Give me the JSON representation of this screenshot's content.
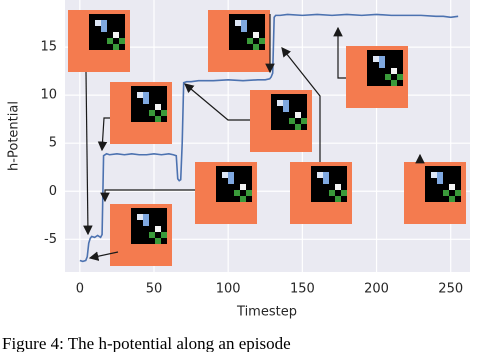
{
  "chart_data": {
    "type": "line",
    "xlabel": "Timestep",
    "ylabel": "h-Potential",
    "caption": "Figure 4: The h-potential along an episode",
    "x": [
      0,
      2,
      4,
      5,
      6,
      7,
      8,
      10,
      12,
      14,
      15,
      16,
      18,
      20,
      25,
      30,
      35,
      40,
      45,
      50,
      55,
      60,
      63,
      65,
      66,
      67,
      68,
      69,
      70,
      72,
      75,
      80,
      90,
      100,
      110,
      120,
      125,
      128,
      129,
      130,
      131,
      132,
      135,
      140,
      150,
      160,
      170,
      180,
      190,
      200,
      210,
      220,
      230,
      240,
      245,
      250,
      255
    ],
    "series": [
      {
        "color": "#4c72b0",
        "values": [
          -7.2,
          -7.3,
          -7.2,
          -6.8,
          -5.4,
          -4.9,
          -4.7,
          -4.8,
          -4.6,
          -4.8,
          -4.5,
          3.7,
          3.9,
          3.8,
          3.9,
          3.8,
          3.9,
          3.8,
          3.8,
          3.9,
          3.8,
          3.9,
          3.8,
          3.7,
          1.3,
          1.1,
          1.2,
          5.0,
          11.3,
          11.4,
          11.4,
          11.5,
          11.5,
          11.6,
          11.5,
          11.6,
          11.6,
          11.7,
          11.9,
          12.3,
          18.1,
          18.3,
          18.3,
          18.4,
          18.3,
          18.4,
          18.3,
          18.4,
          18.3,
          18.4,
          18.3,
          18.3,
          18.3,
          18.2,
          18.2,
          18.1,
          18.2
        ]
      }
    ],
    "xlim": [
      -10,
      263
    ],
    "ylim": [
      -8.4,
      19.9
    ],
    "xticks": [
      0,
      50,
      100,
      150,
      200,
      250
    ],
    "yticks": [
      -5,
      0,
      5,
      10,
      15
    ],
    "grid": true,
    "background": "#eaeaf2"
  }
}
